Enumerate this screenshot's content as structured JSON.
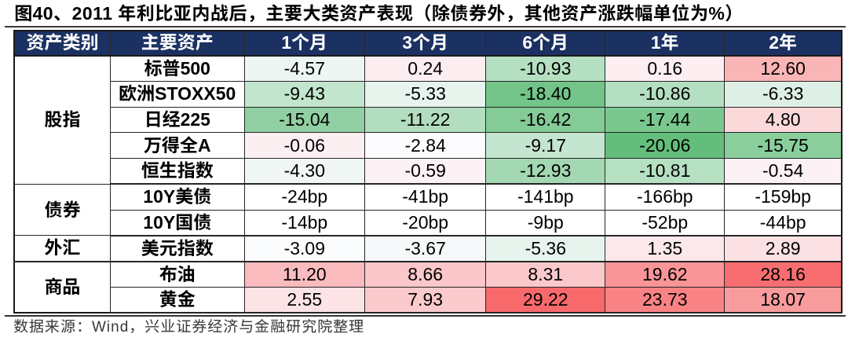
{
  "figure": {
    "title": "图40、2011 年利比亚内战后，主要大类资产表现（除债券外，其他资产涨跌幅单位为%）",
    "source_note": "数据来源：Wind，兴业证券经济与金融研究院整理"
  },
  "table": {
    "columns": [
      "资产类别",
      "主要资产",
      "1个月",
      "3个月",
      "6个月",
      "1年",
      "2年"
    ],
    "groups": [
      {
        "category": "股指",
        "row_count": 5,
        "rows": [
          {
            "asset": "标普500",
            "values": [
              "-4.57",
              "0.24",
              "-10.93",
              "0.16",
              "12.60"
            ],
            "cell_colors": [
              "#EEF6F3",
              "#FCEDF0",
              "#B5DFC1",
              "#FCEEF1",
              "#FAB5B7"
            ]
          },
          {
            "asset": "欧洲STOXX50",
            "values": [
              "-9.43",
              "-5.33",
              "-18.40",
              "-10.86",
              "-6.33"
            ],
            "cell_colors": [
              "#C2E5CD",
              "#E7F3ED",
              "#72C488",
              "#B5DFC2",
              "#DEF0E5"
            ]
          },
          {
            "asset": "日经225",
            "values": [
              "-15.04",
              "-11.22",
              "-16.42",
              "-17.44",
              "4.80"
            ],
            "cell_colors": [
              "#90D0A2",
              "#B2DEBF",
              "#84CB97",
              "#7AC88F",
              "#FBD9DB"
            ]
          },
          {
            "asset": "万得全A",
            "values": [
              "-0.06",
              "-2.84",
              "-9.17",
              "-20.06",
              "-15.75"
            ],
            "cell_colors": [
              "#FCEFF2",
              "#FCFBFE",
              "#C4E5CF",
              "#63BE7B",
              "#8ACE9C"
            ]
          },
          {
            "asset": "恒生指数",
            "values": [
              "-4.30",
              "-0.59",
              "-12.93",
              "-10.81",
              "-0.54"
            ],
            "cell_colors": [
              "#F0F7F5",
              "#FCF1F4",
              "#A3D8B2",
              "#B6E0C2",
              "#FCF1F4"
            ]
          }
        ]
      },
      {
        "category": "债券",
        "row_count": 2,
        "rows": [
          {
            "asset": "10Y美债",
            "values": [
              "-24bp",
              "-41bp",
              "-141bp",
              "-166bp",
              "-159bp"
            ],
            "cell_colors": [
              "#FFFFFF",
              "#FFFFFF",
              "#FFFFFF",
              "#FFFFFF",
              "#FFFFFF"
            ]
          },
          {
            "asset": "10Y国债",
            "values": [
              "-14bp",
              "-20bp",
              "-9bp",
              "-52bp",
              "-44bp"
            ],
            "cell_colors": [
              "#FFFFFF",
              "#FFFFFF",
              "#FFFFFF",
              "#FFFFFF",
              "#FFFFFF"
            ]
          }
        ]
      },
      {
        "category": "外汇",
        "row_count": 1,
        "rows": [
          {
            "asset": "美元指数",
            "values": [
              "-3.09",
              "-3.67",
              "-5.36",
              "1.35",
              "2.89"
            ],
            "cell_colors": [
              "#FBFCFE",
              "#F6F9FA",
              "#E7F3ED",
              "#FBE8EB",
              "#FBE1E4"
            ]
          }
        ]
      },
      {
        "category": "商品",
        "row_count": 2,
        "rows": [
          {
            "asset": "布油",
            "values": [
              "11.20",
              "8.66",
              "8.31",
              "19.62",
              "28.16"
            ],
            "cell_colors": [
              "#FABBBE",
              "#FBC7CA",
              "#FBC9CB",
              "#F99597",
              "#F86E70"
            ]
          },
          {
            "asset": "黄金",
            "values": [
              "2.55",
              "7.93",
              "29.22",
              "23.73",
              "18.07"
            ],
            "cell_colors": [
              "#FBE3E6",
              "#FBCACD",
              "#F8696B",
              "#F98284",
              "#F99C9E"
            ]
          }
        ]
      }
    ]
  },
  "colors": {
    "header_bg": "#1B3162",
    "header_text": "#FFFFFF",
    "grid_line": "#262626",
    "rule_line": "#3A3A3A",
    "title_text": "#000000",
    "source_text": "#333333",
    "scale_negative_green": "#63BE7B",
    "scale_midpoint_white": "#FCFCFF",
    "scale_positive_red": "#F8696B"
  },
  "chart_data": {
    "type": "table",
    "title": "图40、2011 年利比亚内战后，主要大类资产表现（除债券外，其他资产涨跌幅单位为%）",
    "columns": [
      "资产类别",
      "主要资产",
      "1个月",
      "3个月",
      "6个月",
      "1年",
      "2年"
    ],
    "rows": [
      [
        "股指",
        "标普500",
        -4.57,
        0.24,
        -10.93,
        0.16,
        12.6
      ],
      [
        "股指",
        "欧洲STOXX50",
        -9.43,
        -5.33,
        -18.4,
        -10.86,
        -6.33
      ],
      [
        "股指",
        "日经225",
        -15.04,
        -11.22,
        -16.42,
        -17.44,
        4.8
      ],
      [
        "股指",
        "万得全A",
        -0.06,
        -2.84,
        -9.17,
        -20.06,
        -15.75
      ],
      [
        "股指",
        "恒生指数",
        -4.3,
        -0.59,
        -12.93,
        -10.81,
        -0.54
      ],
      [
        "债券",
        "10Y美债",
        "-24bp",
        "-41bp",
        "-141bp",
        "-166bp",
        "-159bp"
      ],
      [
        "债券",
        "10Y国债",
        "-14bp",
        "-20bp",
        "-9bp",
        "-52bp",
        "-44bp"
      ],
      [
        "外汇",
        "美元指数",
        -3.09,
        -3.67,
        -5.36,
        1.35,
        2.89
      ],
      [
        "商品",
        "布油",
        11.2,
        8.66,
        8.31,
        19.62,
        28.16
      ],
      [
        "商品",
        "黄金",
        2.55,
        7.93,
        29.22,
        23.73,
        18.07
      ]
    ],
    "notes": "values in % except bond rows in bp; cells shaded with a green-white-red scale: min -20.06 -> #63BE7B, median -2.965 -> #FCFCFF, max 29.22 -> #F8696B; bond (bp) rows unshaded",
    "source": "数据来源：Wind，兴业证券经济与金融研究院整理"
  }
}
